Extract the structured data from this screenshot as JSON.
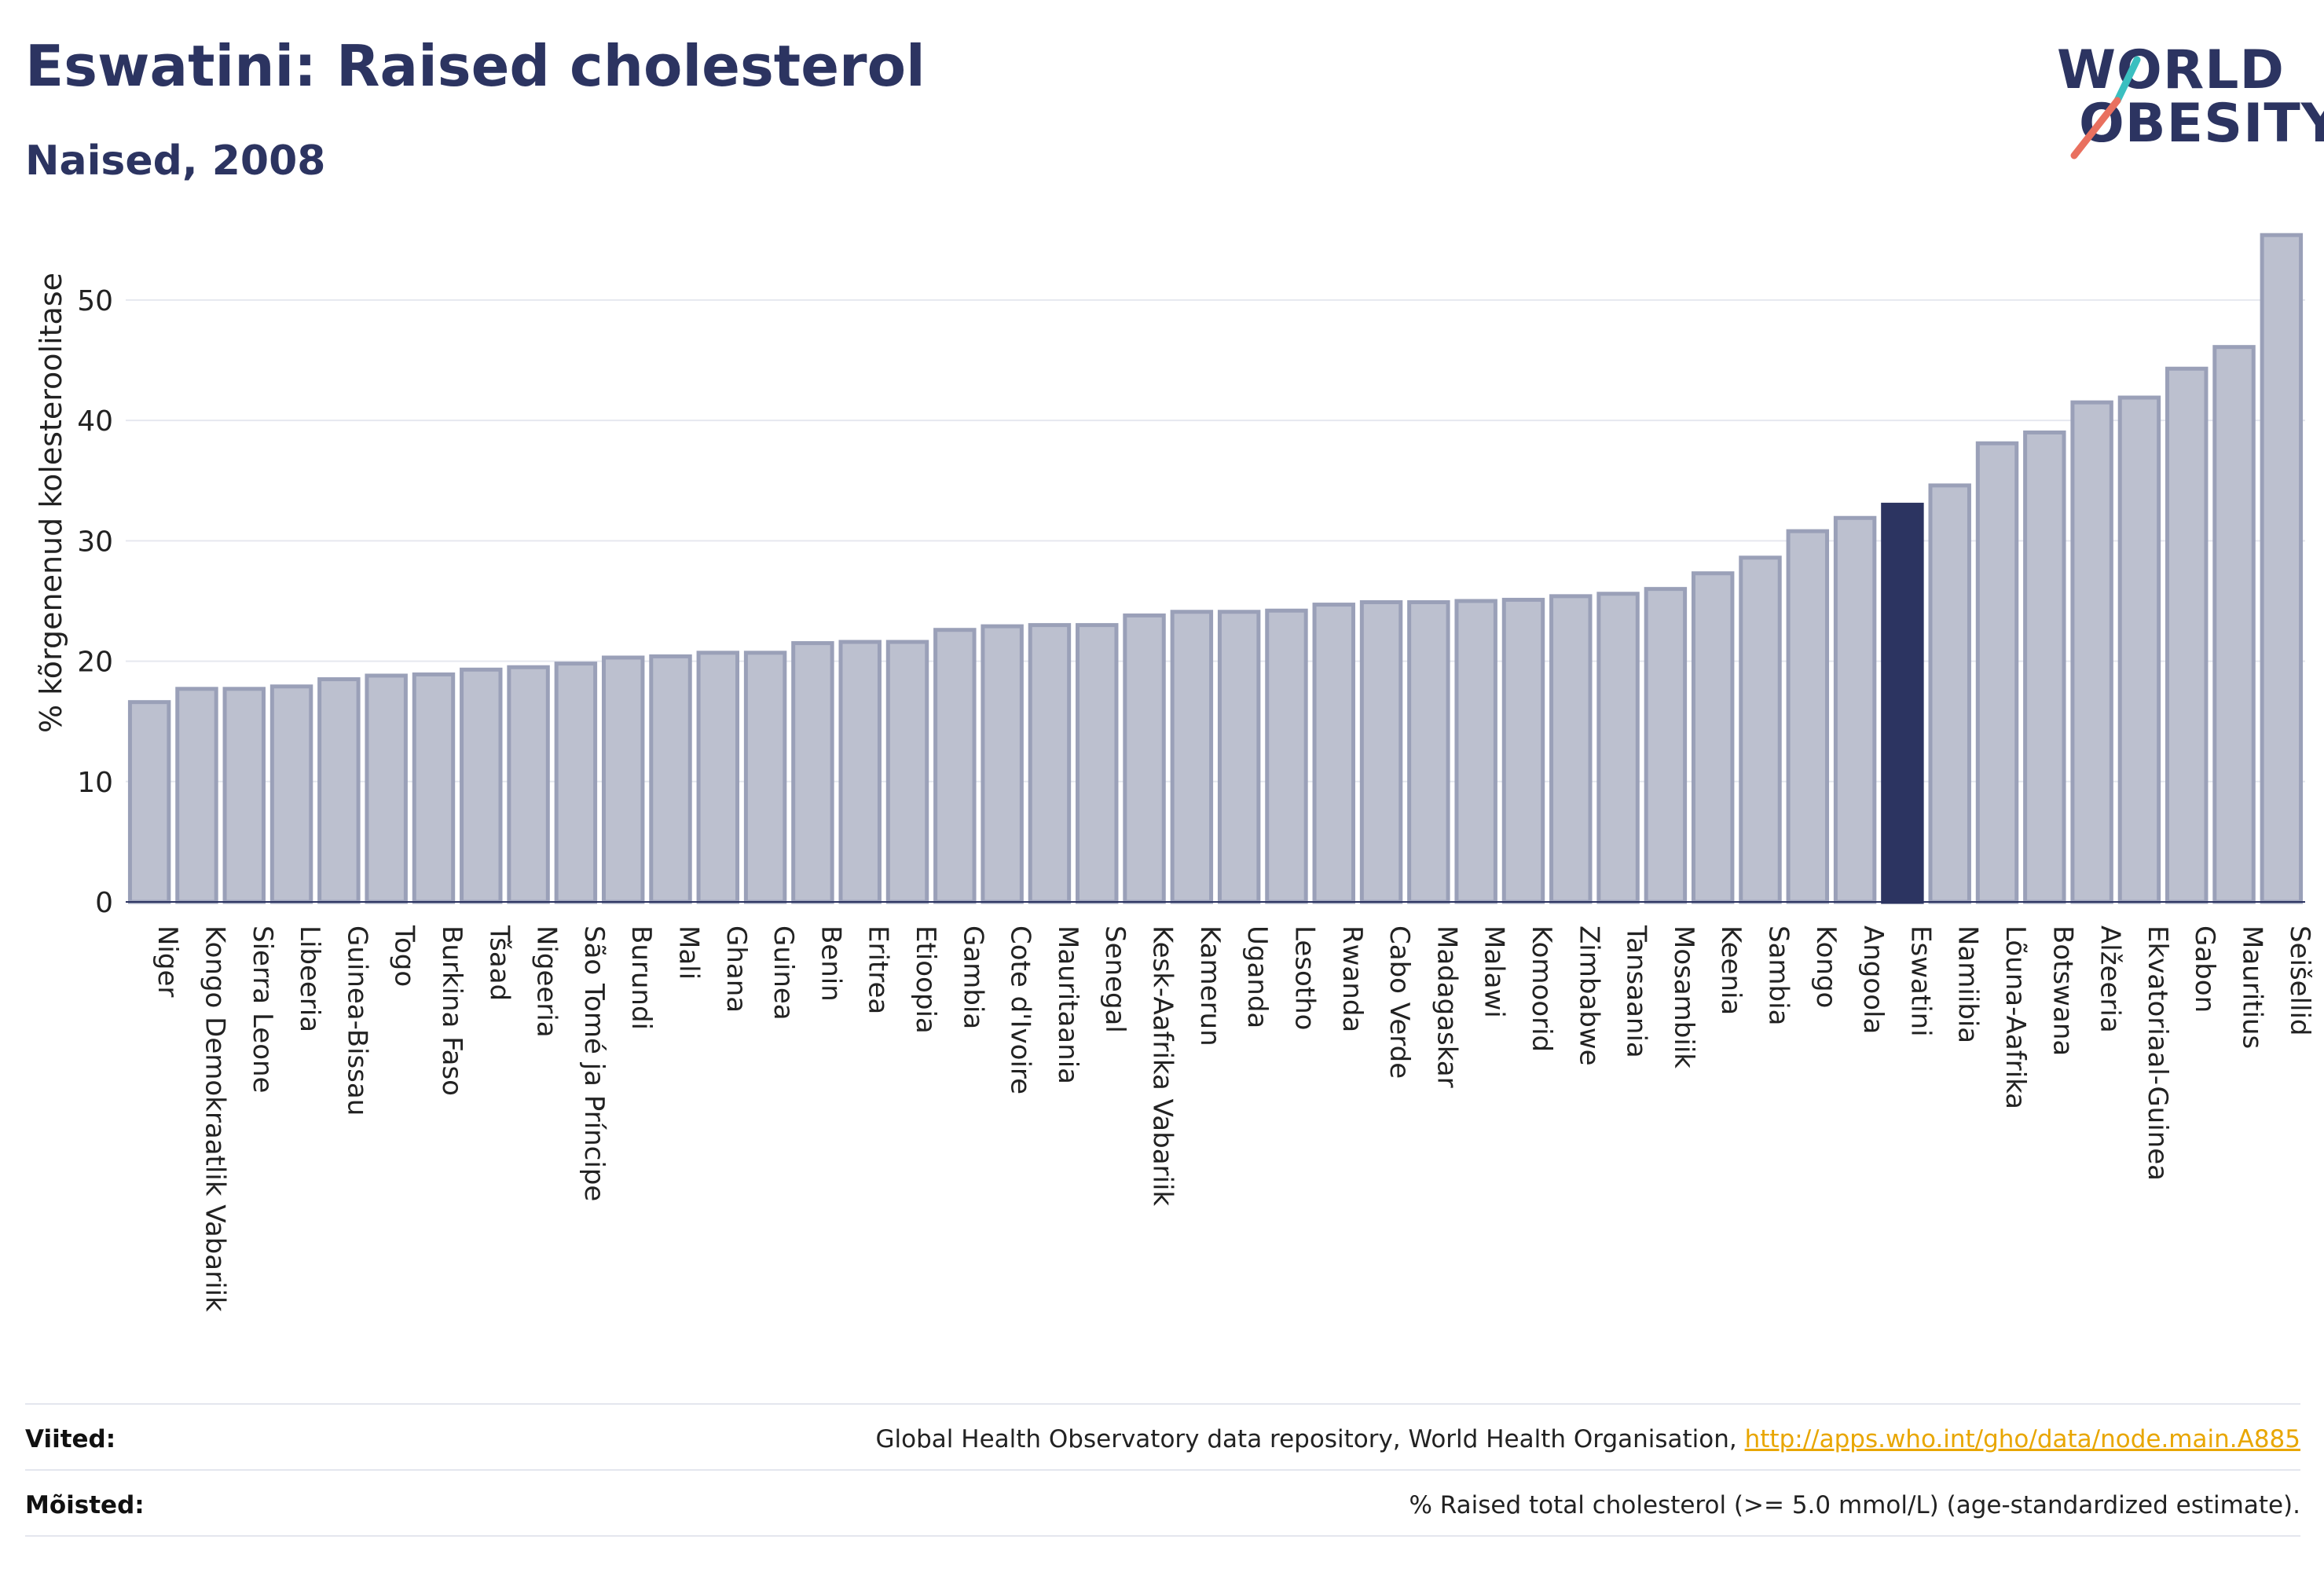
{
  "header": {
    "title": "Eswatini: Raised cholesterol",
    "subtitle": "Naised, 2008"
  },
  "logo": {
    "line1": "WORLD",
    "line2": "OBESITY"
  },
  "colors": {
    "bar_default": "#bcc0cf",
    "bar_stroke": "#9aa0b8",
    "bar_highlight": "#2c3461",
    "grid": "#e6e8ef",
    "text": "#2c3461",
    "logo_accent_teal": "#3bbfc0",
    "logo_accent_red": "#e9705f"
  },
  "chart_data": {
    "type": "bar",
    "ylabel": "% kõrgenenud kolesteroolitase",
    "ylim": [
      0,
      56
    ],
    "yticks": [
      0,
      10,
      20,
      30,
      40,
      50
    ],
    "grid": true,
    "highlight": "Eswatini",
    "categories": [
      "Niger",
      "Kongo Demokraatlik Vabariik",
      "Sierra Leone",
      "Libeeria",
      "Guinea-Bissau",
      "Togo",
      "Burkina Faso",
      "Tšaad",
      "Nigeeria",
      "São Tomé ja Príncipe",
      "Burundi",
      "Mali",
      "Ghana",
      "Guinea",
      "Benin",
      "Eritrea",
      "Etioopia",
      "Gambia",
      "Cote d'Ivoire",
      "Mauritaania",
      "Senegal",
      "Kesk-Aafrika Vabariik",
      "Kamerun",
      "Uganda",
      "Lesotho",
      "Rwanda",
      "Cabo Verde",
      "Madagaskar",
      "Malawi",
      "Komoorid",
      "Zimbabwe",
      "Tansaania",
      "Mosambiik",
      "Keenia",
      "Sambia",
      "Kongo",
      "Angoola",
      "Eswatini",
      "Namiibia",
      "Lõuna-Aafrika",
      "Botswana",
      "Alžeeria",
      "Ekvatoriaal-Guinea",
      "Gabon",
      "Mauritius",
      "Seišellid"
    ],
    "values": [
      16.6,
      17.7,
      17.7,
      17.9,
      18.5,
      18.8,
      18.9,
      19.3,
      19.5,
      19.8,
      20.3,
      20.4,
      20.7,
      20.7,
      21.5,
      21.6,
      21.6,
      22.6,
      22.9,
      23.0,
      23.0,
      23.8,
      24.1,
      24.1,
      24.2,
      24.7,
      24.9,
      24.9,
      25.0,
      25.1,
      25.4,
      25.6,
      26.0,
      27.3,
      28.6,
      30.8,
      31.9,
      33.0,
      34.6,
      38.1,
      39.0,
      41.5,
      41.9,
      44.3,
      46.1,
      55.4
    ]
  },
  "footer": {
    "sources_label": "Viited:",
    "sources_text": "Global Health Observatory data repository, World Health Organisation,",
    "sources_link": "http://apps.who.int/gho/data/node.main.A885",
    "definitions_label": "Mõisted:",
    "definitions_text": "% Raised total cholesterol (>= 5.0 mmol/L) (age-standardized estimate)."
  }
}
